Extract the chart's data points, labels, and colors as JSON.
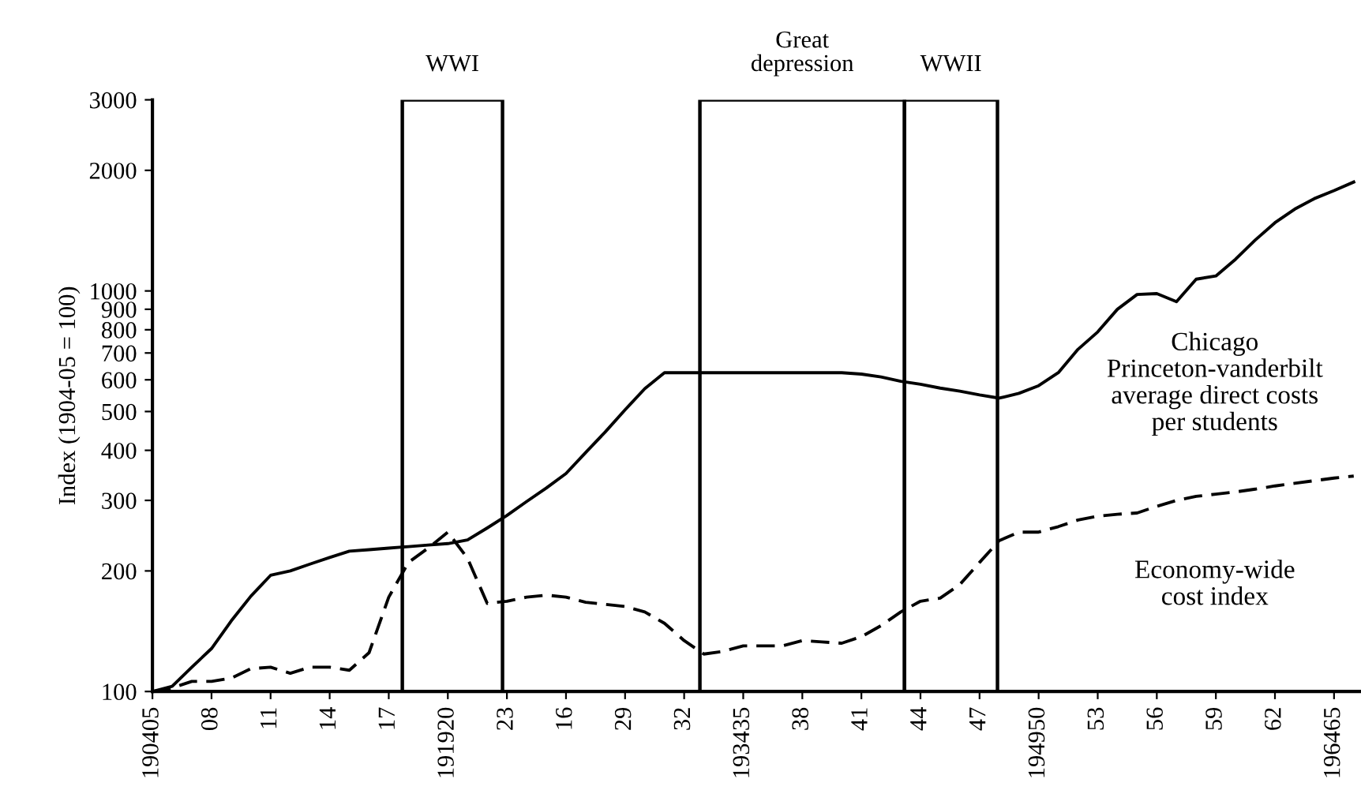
{
  "chart_data": {
    "type": "line",
    "ylabel": "Index (1904-05 = 100)",
    "log": "y",
    "legend": false,
    "grid": false,
    "ylim": [
      100,
      3000
    ],
    "yticks": [
      100,
      200,
      300,
      400,
      500,
      600,
      700,
      800,
      900,
      1000,
      2000,
      3000
    ],
    "categories": [
      "190405",
      null,
      null,
      "08",
      null,
      null,
      "11",
      null,
      null,
      "14",
      null,
      null,
      "17",
      null,
      null,
      "191920",
      null,
      null,
      "23",
      null,
      null,
      "16",
      null,
      null,
      "29",
      null,
      null,
      "32",
      null,
      null,
      "193435",
      null,
      null,
      "38",
      null,
      null,
      "41",
      null,
      null,
      "44",
      null,
      null,
      "47",
      null,
      null,
      "194950",
      null,
      null,
      "53",
      null,
      null,
      "56",
      null,
      null,
      "59",
      null,
      null,
      "62",
      null,
      null,
      "196465",
      null
    ],
    "annotations": [
      "WWI",
      "Great\ndepression",
      "WWII"
    ],
    "series": [
      {
        "name": "Chicago\nPrinceton-vanderbilt\naverage direct costs\nper students",
        "color": "#000000",
        "line_style": "solid",
        "values": [
          100,
          103,
          115,
          128,
          150,
          173,
          195,
          200,
          208,
          216,
          224,
          226,
          228,
          230,
          232,
          234,
          239,
          256,
          275,
          298,
          322,
          350,
          395,
          445,
          505,
          570,
          625,
          625,
          625,
          625,
          625,
          625,
          625,
          625,
          625,
          625,
          620,
          610,
          595,
          585,
          572,
          562,
          550,
          540,
          555,
          580,
          625,
          715,
          790,
          900,
          980,
          985,
          940,
          1070,
          1090,
          1200,
          1340,
          1480,
          1600,
          1700,
          1780,
          1870
        ]
      },
      {
        "name": "Economy-wide\ncost index",
        "color": "#000000",
        "line_style": "dashed",
        "values": [
          100,
          102,
          106,
          106,
          108,
          114,
          115,
          111,
          115,
          115,
          113,
          125,
          172,
          210,
          228,
          250,
          215,
          166,
          168,
          172,
          174,
          172,
          167,
          165,
          163,
          158,
          148,
          134,
          124,
          126,
          130,
          130,
          130,
          134,
          133,
          132,
          137,
          146,
          158,
          168,
          171,
          185,
          210,
          238,
          250,
          250,
          258,
          268,
          274,
          277,
          279,
          290,
          300,
          307,
          311,
          315,
          320,
          326,
          331,
          336,
          341,
          345
        ]
      }
    ]
  }
}
